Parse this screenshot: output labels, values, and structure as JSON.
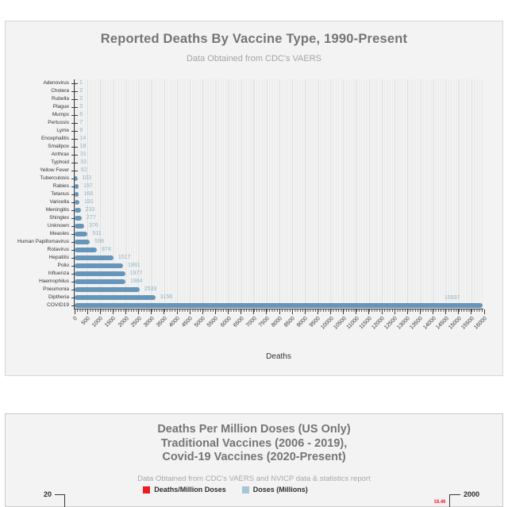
{
  "colors": {
    "card_bg": "#f3f3f3",
    "bar": "#6596b9",
    "value_label": "#90b2c6",
    "axis": "#3a3a3a",
    "grid_minor": "#eaeaea",
    "grid_major": "#dddddd",
    "title": "#757575",
    "subtitle": "#a5a5a5",
    "legend_red": "#ed1c24",
    "legend_blue": "#a9c6d8"
  },
  "chart_data": [
    {
      "type": "bar",
      "orientation": "horizontal",
      "title": "Reported Deaths By Vaccine Type, 1990-Present",
      "subtitle": "Data Obtained from CDC's VAERS",
      "xlabel": "Deaths",
      "categories": [
        "Adenovirus",
        "Cholera",
        "Rubella",
        "Plague",
        "Mumps",
        "Pertussis",
        "Lyme",
        "Encephalitis",
        "Smallpox",
        "Anthrax",
        "Typhoid",
        "Yellow Fever",
        "Tuberculosis",
        "Rabies",
        "Tetanus",
        "Varicella",
        "Meningitis",
        "Shingles",
        "Unknown",
        "Measles",
        "Human Papillomavirus",
        "Rotavirus",
        "Hepatitis",
        "Polio",
        "Influenza",
        "Haemophilus",
        "Pneumonia",
        "Diptheria",
        "COVID19"
      ],
      "values": [
        1,
        2,
        2,
        3,
        6,
        7,
        9,
        14,
        18,
        31,
        33,
        62,
        103,
        157,
        168,
        191,
        233,
        277,
        376,
        511,
        598,
        874,
        1517,
        1891,
        1977,
        1984,
        2533,
        3156,
        15937
      ],
      "xlim": [
        0,
        16000
      ],
      "x_tick_step": 500,
      "x_minor_tick_step": 100,
      "grid": true,
      "legend_position": "none"
    },
    {
      "type": "bar",
      "title_lines": [
        "Deaths Per Million Doses (US Only)",
        "Traditional Vaccines (2006 - 2019),",
        "Covid-19 Vaccines (2020-Present)"
      ],
      "subtitle": "Data Obtained from CDC's VAERS and NVICP data & statistics report",
      "legend": [
        {
          "label": "Deaths/Million Doses",
          "color": "#ed1c24"
        },
        {
          "label": "Doses (Millions)",
          "color": "#a9c6d8"
        }
      ],
      "left_axis_top_tick": "20",
      "right_axis_top_tick": "2000",
      "visible_data_labels": [
        {
          "value": "18.46",
          "color": "#ed1c24"
        }
      ]
    }
  ]
}
